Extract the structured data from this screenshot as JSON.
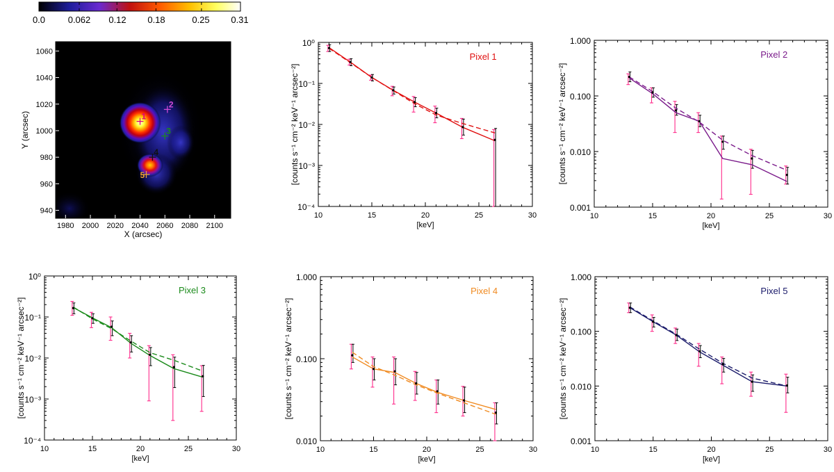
{
  "colorbar": {
    "ticks": [
      "0.0",
      "0.062",
      "0.12",
      "0.18",
      "0.25",
      "0.31"
    ],
    "tick_values": [
      0.0,
      0.062,
      0.12,
      0.18,
      0.25,
      0.31
    ],
    "range": [
      0.0,
      0.31
    ]
  },
  "image_map": {
    "xlabel": "X (arcsec)",
    "ylabel": "Y (arcsec)",
    "xticks": [
      "1980",
      "2000",
      "2020",
      "2040",
      "2060",
      "2080",
      "2100"
    ],
    "xtick_values": [
      1980,
      2000,
      2020,
      2040,
      2060,
      2080,
      2100
    ],
    "yticks": [
      "940",
      "960",
      "980",
      "1000",
      "1020",
      "1040",
      "1060"
    ],
    "ytick_values": [
      940,
      960,
      980,
      1000,
      1020,
      1040,
      1060
    ],
    "xlim": [
      1972,
      2113
    ],
    "ylim": [
      934,
      1067
    ],
    "sources": [
      {
        "x": 2040,
        "y": 1006,
        "peak": 0.31
      },
      {
        "x": 2048,
        "y": 974,
        "peak": 0.22
      }
    ],
    "pixels": [
      {
        "label": "1",
        "x": 2040,
        "y": 1007,
        "color": "#e0007a"
      },
      {
        "label": "2",
        "x": 2062,
        "y": 1016,
        "color": "#d04ad8"
      },
      {
        "label": "3",
        "x": 2060,
        "y": 996,
        "color": "#1a8a1a"
      },
      {
        "label": "4",
        "x": 2050,
        "y": 980,
        "color": "#111111"
      },
      {
        "label": "5",
        "x": 2045,
        "y": 967,
        "color": "#f0a030"
      }
    ]
  },
  "chart_data": [
    {
      "type": "line",
      "title": "Pixel 1",
      "title_color": "#e01010",
      "line_color": "#e01010",
      "xlabel": "[keV]",
      "ylabel": "[counts s⁻¹ cm⁻² keV⁻¹ arcsec⁻²]",
      "yscale": "log",
      "xlim": [
        10,
        30
      ],
      "ylim": [
        0.0001,
        1
      ],
      "xticks": [
        "10",
        "15",
        "20",
        "25",
        "30"
      ],
      "xtick_values": [
        10,
        15,
        20,
        25,
        30
      ],
      "yticks": [
        "10⁻⁴",
        "10⁻³",
        "10⁻²",
        "10⁻¹",
        "10⁰"
      ],
      "ytick_values": [
        0.0001,
        0.001,
        0.01,
        0.1,
        1
      ],
      "x": [
        11,
        13,
        15,
        17,
        19,
        21,
        23.5,
        26.5
      ],
      "series": [
        {
          "style": "solid",
          "values": [
            0.75,
            0.33,
            0.14,
            0.068,
            0.035,
            0.019,
            0.0085,
            0.004
          ]
        },
        {
          "style": "dashed",
          "values": [
            0.72,
            0.32,
            0.14,
            0.067,
            0.032,
            0.017,
            0.0105,
            0.0062
          ]
        }
      ],
      "data_points": [
        0.73,
        0.33,
        0.14,
        0.068,
        0.035,
        0.019,
        0.0086,
        0.0042
      ],
      "err_black": [
        [
          0.6,
          0.88
        ],
        [
          0.27,
          0.4
        ],
        [
          0.115,
          0.165
        ],
        [
          0.055,
          0.082
        ],
        [
          0.027,
          0.045
        ],
        [
          0.0145,
          0.025
        ],
        [
          0.0055,
          0.0135
        ],
        [
          0.0001,
          0.008
        ]
      ],
      "err_pink": [
        [
          0.6,
          0.85
        ],
        [
          0.28,
          0.39
        ],
        [
          0.12,
          0.16
        ],
        [
          0.05,
          0.085
        ],
        [
          0.02,
          0.048
        ],
        [
          0.011,
          0.028
        ],
        [
          0.0045,
          0.014
        ],
        [
          0.0001,
          0.0075
        ]
      ]
    },
    {
      "type": "line",
      "title": "Pixel 2",
      "title_color": "#7a1a8a",
      "line_color": "#7a1a8a",
      "xlabel": "[keV]",
      "ylabel": "[counts s⁻¹ cm⁻² keV⁻¹ arcsec⁻²]",
      "yscale": "log",
      "xlim": [
        10,
        30
      ],
      "ylim": [
        0.001,
        1
      ],
      "xticks": [
        "10",
        "15",
        "20",
        "25",
        "30"
      ],
      "xtick_values": [
        10,
        15,
        20,
        25,
        30
      ],
      "yticks": [
        "0.001",
        "0.010",
        "0.100",
        "1.000"
      ],
      "ytick_values": [
        0.001,
        0.01,
        0.1,
        1
      ],
      "x": [
        13,
        15,
        17,
        19,
        21,
        23.5,
        26.5
      ],
      "series": [
        {
          "style": "solid",
          "values": [
            0.21,
            0.11,
            0.05,
            0.035,
            0.0075,
            0.0058,
            0.0029
          ]
        },
        {
          "style": "dashed",
          "values": [
            0.22,
            0.12,
            0.06,
            0.034,
            0.016,
            0.0085,
            0.0046
          ]
        }
      ],
      "data_points": [
        0.22,
        0.115,
        0.055,
        0.035,
        0.015,
        0.0075,
        0.0038
      ],
      "err_black": [
        [
          0.18,
          0.27
        ],
        [
          0.095,
          0.14
        ],
        [
          0.045,
          0.07
        ],
        [
          0.028,
          0.045
        ],
        [
          0.011,
          0.019
        ],
        [
          0.005,
          0.0105
        ],
        [
          0.0026,
          0.0052
        ]
      ],
      "err_pink": [
        [
          0.16,
          0.25
        ],
        [
          0.075,
          0.14
        ],
        [
          0.022,
          0.08
        ],
        [
          0.022,
          0.05
        ],
        [
          0.0014,
          0.019
        ],
        [
          0.0017,
          0.011
        ],
        [
          0.0026,
          0.0055
        ]
      ]
    },
    {
      "type": "line",
      "title": "Pixel 3",
      "title_color": "#1a8a1a",
      "line_color": "#1a8a1a",
      "xlabel": "[keV]",
      "ylabel": "[counts s⁻¹ cm⁻² keV⁻¹ arcsec⁻²]",
      "yscale": "log",
      "xlim": [
        10,
        30
      ],
      "ylim": [
        0.0001,
        1
      ],
      "xticks": [
        "10",
        "15",
        "20",
        "25",
        "30"
      ],
      "xtick_values": [
        10,
        15,
        20,
        25,
        30
      ],
      "yticks": [
        "10⁻⁴",
        "10⁻³",
        "10⁻²",
        "10⁻¹",
        "10⁰"
      ],
      "ytick_values": [
        0.0001,
        0.001,
        0.01,
        0.1,
        1
      ],
      "x": [
        13,
        15,
        17,
        19,
        21,
        23.5,
        26.5
      ],
      "series": [
        {
          "style": "solid",
          "values": [
            0.17,
            0.095,
            0.055,
            0.023,
            0.0115,
            0.0055,
            0.0034
          ]
        },
        {
          "style": "dashed",
          "values": [
            0.175,
            0.09,
            0.052,
            0.026,
            0.0135,
            0.0088,
            0.0048
          ]
        }
      ],
      "data_points": [
        0.165,
        0.093,
        0.058,
        0.024,
        0.012,
        0.006,
        0.0036
      ],
      "err_black": [
        [
          0.12,
          0.22
        ],
        [
          0.07,
          0.12
        ],
        [
          0.035,
          0.08
        ],
        [
          0.014,
          0.035
        ],
        [
          0.0065,
          0.018
        ],
        [
          0.0019,
          0.0105
        ],
        [
          0.00115,
          0.0066
        ]
      ],
      "err_pink": [
        [
          0.11,
          0.24
        ],
        [
          0.055,
          0.13
        ],
        [
          0.027,
          0.1
        ],
        [
          0.01,
          0.04
        ],
        [
          0.0009,
          0.02
        ],
        [
          0.0003,
          0.012
        ],
        [
          0.0005,
          0.0065
        ]
      ]
    },
    {
      "type": "line",
      "title": "Pixel 4",
      "title_color": "#f08a20",
      "line_color": "#f08a20",
      "xlabel": "[keV]",
      "ylabel": "[counts s⁻¹ cm⁻² keV⁻¹ arcsec⁻²]",
      "yscale": "log",
      "xlim": [
        10,
        30
      ],
      "ylim": [
        0.01,
        1
      ],
      "xticks": [
        "10",
        "15",
        "20",
        "25",
        "30"
      ],
      "xtick_values": [
        10,
        15,
        20,
        25,
        30
      ],
      "yticks": [
        "0.010",
        "0.100",
        "1.000"
      ],
      "ytick_values": [
        0.01,
        0.1,
        1
      ],
      "x": [
        13,
        15,
        17,
        19,
        21,
        23.5,
        26.5
      ],
      "series": [
        {
          "style": "solid",
          "values": [
            0.105,
            0.075,
            0.068,
            0.05,
            0.039,
            0.031,
            0.024
          ]
        },
        {
          "style": "dashed",
          "values": [
            0.12,
            0.08,
            0.063,
            0.048,
            0.038,
            0.029,
            0.021
          ]
        }
      ],
      "data_points": [
        0.11,
        0.075,
        0.07,
        0.05,
        0.04,
        0.031,
        0.022
      ],
      "err_black": [
        [
          0.09,
          0.15
        ],
        [
          0.055,
          0.1
        ],
        [
          0.048,
          0.1
        ],
        [
          0.037,
          0.068
        ],
        [
          0.028,
          0.055
        ],
        [
          0.022,
          0.045
        ],
        [
          0.016,
          0.029
        ]
      ],
      "err_pink": [
        [
          0.075,
          0.15
        ],
        [
          0.045,
          0.105
        ],
        [
          0.028,
          0.105
        ],
        [
          0.031,
          0.07
        ],
        [
          0.022,
          0.055
        ],
        [
          0.02,
          0.046
        ],
        [
          0.01,
          0.029
        ]
      ]
    },
    {
      "type": "line",
      "title": "Pixel 5",
      "title_color": "#1a1a6a",
      "line_color": "#1a1a6a",
      "xlabel": "[keV]",
      "ylabel": "[counts s⁻¹ cm⁻² keV⁻¹ arcsec⁻²]",
      "yscale": "log",
      "xlim": [
        10,
        30
      ],
      "ylim": [
        0.001,
        1
      ],
      "xticks": [
        "10",
        "15",
        "20",
        "25",
        "30"
      ],
      "xtick_values": [
        10,
        15,
        20,
        25,
        30
      ],
      "yticks": [
        "0.001",
        "0.010",
        "0.100",
        "1.000"
      ],
      "ytick_values": [
        0.001,
        0.01,
        0.1,
        1
      ],
      "x": [
        13,
        15,
        17,
        19,
        21,
        23.5,
        26.5
      ],
      "series": [
        {
          "style": "solid",
          "values": [
            0.27,
            0.15,
            0.085,
            0.042,
            0.024,
            0.012,
            0.01
          ]
        },
        {
          "style": "dashed",
          "values": [
            0.28,
            0.155,
            0.088,
            0.047,
            0.026,
            0.014,
            0.01
          ]
        }
      ],
      "data_points": [
        0.27,
        0.15,
        0.085,
        0.043,
        0.025,
        0.012,
        0.0102
      ],
      "err_black": [
        [
          0.22,
          0.33
        ],
        [
          0.12,
          0.18
        ],
        [
          0.068,
          0.11
        ],
        [
          0.033,
          0.055
        ],
        [
          0.018,
          0.032
        ],
        [
          0.008,
          0.016
        ],
        [
          0.0075,
          0.0145
        ]
      ],
      "err_pink": [
        [
          0.22,
          0.33
        ],
        [
          0.1,
          0.2
        ],
        [
          0.06,
          0.115
        ],
        [
          0.023,
          0.06
        ],
        [
          0.011,
          0.034
        ],
        [
          0.0065,
          0.018
        ],
        [
          0.0033,
          0.0165
        ]
      ]
    }
  ]
}
